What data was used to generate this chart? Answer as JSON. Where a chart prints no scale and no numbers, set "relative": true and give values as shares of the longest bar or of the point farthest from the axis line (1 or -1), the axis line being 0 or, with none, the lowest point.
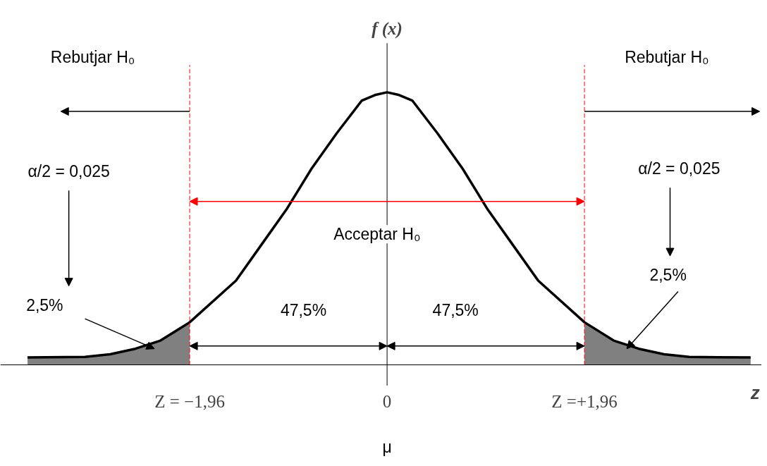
{
  "chart_data": {
    "type": "line",
    "relative": true,
    "ylabel": "f (x)",
    "xlabel": "z",
    "xlim": [
      -3.84,
      3.72
    ],
    "xticks": [
      {
        "value": -1.96,
        "label": "Z = −1,96"
      },
      0,
      {
        "value": 1.96,
        "label": "Z =+1,96"
      }
    ],
    "series": [
      {
        "type": "area",
        "color": "#808080",
        "x": [
          -3.57,
          -3.0,
          -2.75,
          -2.5,
          -2.25,
          -1.96
        ],
        "values": [
          0.028,
          0.03,
          0.04,
          0.06,
          0.09,
          0.157
        ]
      },
      {
        "type": "area",
        "color": "#808080",
        "x": [
          1.96,
          2.25,
          2.5,
          2.75,
          3.0,
          3.61
        ],
        "values": [
          0.157,
          0.09,
          0.06,
          0.04,
          0.03,
          0.028
        ]
      },
      {
        "color": "#000000",
        "x": [
          -3.57,
          -3.0,
          -2.75,
          -2.5,
          -2.25,
          -1.96,
          -1.5,
          -1.25,
          -1.0,
          -0.75,
          -0.5,
          -0.25,
          -0.12,
          0,
          0.12,
          0.25,
          0.5,
          0.75,
          1.0,
          1.25,
          1.5,
          1.96,
          2.25,
          2.5,
          2.75,
          3.0,
          3.61
        ],
        "values": [
          0.028,
          0.03,
          0.04,
          0.06,
          0.09,
          0.157,
          0.31,
          0.44,
          0.57,
          0.72,
          0.85,
          0.97,
          0.99,
          1.0,
          0.99,
          0.97,
          0.85,
          0.72,
          0.57,
          0.44,
          0.31,
          0.157,
          0.09,
          0.06,
          0.04,
          0.03,
          0.028
        ]
      }
    ],
    "ref_lines": [
      {
        "axis": "x",
        "value": -1.96,
        "color": "#ff0000",
        "line_style": "dashed"
      },
      {
        "axis": "x",
        "value": 1.96,
        "color": "#ff0000",
        "line_style": "dashed"
      }
    ],
    "annotations": [
      "Rebutjar  H₀",
      "Rebutjar  H₀",
      "α/2 = 0,025",
      "α/2 = 0,025",
      "Acceptar H₀",
      "2,5%",
      "2,5%",
      "47,5%",
      "47,5%",
      "μ"
    ],
    "grid": false
  }
}
